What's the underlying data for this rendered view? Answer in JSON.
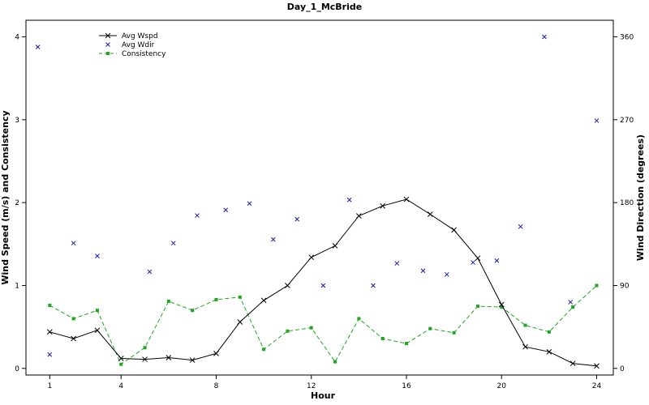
{
  "chart_data": {
    "type": "line",
    "title": "Day_1_McBride",
    "xlabel": "Hour",
    "ylabel_left": "Wind Speed (m/s) and Consistency",
    "ylabel_right": "Wind Direction (degrees)",
    "xlim": [
      0,
      24.7
    ],
    "ylim_left": [
      -0.08,
      4.2
    ],
    "ylim_right": [
      0,
      360
    ],
    "x_ticks": [
      1,
      4,
      8,
      12,
      16,
      20,
      24
    ],
    "y_ticks_left": [
      0,
      1,
      2,
      3,
      4
    ],
    "y_ticks_right": [
      0,
      90,
      180,
      270,
      360
    ],
    "grid": false,
    "legend_position": "top-left",
    "legend": [
      "Avg Wspd",
      "Avg Wdir",
      "Consistency"
    ],
    "colors": {
      "avg_wspd": "#000000",
      "avg_wdir": "#1a1aa6",
      "consistency": "#1fa51f"
    },
    "series": [
      {
        "name": "Avg Wspd",
        "axis": "left",
        "style": "line-x-markers",
        "x": [
          1,
          2,
          3,
          4,
          5,
          6,
          7,
          8,
          9,
          10,
          11,
          12,
          13,
          14,
          15,
          16,
          17,
          18,
          19,
          20,
          21,
          22,
          23,
          24
        ],
        "y": [
          0.44,
          0.36,
          0.46,
          0.12,
          0.11,
          0.13,
          0.1,
          0.18,
          0.56,
          0.82,
          1.0,
          1.34,
          1.48,
          1.84,
          1.96,
          2.04,
          1.86,
          1.67,
          1.33,
          0.77,
          0.26,
          0.2,
          0.06,
          0.03
        ]
      },
      {
        "name": "Avg Wdir",
        "axis": "right",
        "style": "x-markers",
        "x": [
          0.5,
          1.0,
          2.0,
          3.0,
          5.2,
          6.2,
          7.2,
          8.4,
          9.4,
          10.4,
          11.4,
          12.5,
          13.6,
          14.6,
          15.6,
          16.7,
          17.7,
          18.8,
          19.8,
          20.8,
          21.8,
          22.9,
          24.0
        ],
        "y": [
          349,
          15,
          136,
          122,
          105,
          136,
          166,
          172,
          179,
          140,
          162,
          90,
          183,
          90,
          114,
          106,
          102,
          115,
          117,
          154,
          360,
          72,
          269
        ]
      },
      {
        "name": "Consistency",
        "axis": "left",
        "style": "dashed-square-markers",
        "x": [
          1,
          2,
          3,
          4,
          5,
          6,
          7,
          8,
          9,
          10,
          11,
          12,
          13,
          14,
          15,
          16,
          17,
          18,
          19,
          20,
          21,
          22,
          23,
          24
        ],
        "y": [
          0.76,
          0.6,
          0.7,
          0.05,
          0.25,
          0.81,
          0.7,
          0.83,
          0.86,
          0.23,
          0.45,
          0.49,
          0.08,
          0.6,
          0.36,
          0.3,
          0.48,
          0.43,
          0.75,
          0.74,
          0.52,
          0.44,
          0.74,
          1.0
        ]
      }
    ]
  }
}
